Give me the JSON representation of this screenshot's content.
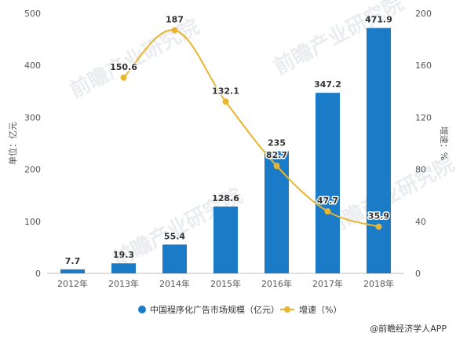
{
  "chart_data": {
    "type": "bar+line",
    "categories": [
      "2012年",
      "2013年",
      "2014年",
      "2015年",
      "2016年",
      "2017年",
      "2018年"
    ],
    "series": [
      {
        "name": "中国程序化广告市场规模（亿元）",
        "type": "bar",
        "axis": "left",
        "color": "#1b7bc6",
        "values": [
          7.7,
          19.3,
          55.4,
          128.6,
          235,
          347.2,
          471.9
        ],
        "labels": [
          "7.7",
          "19.3",
          "55.4",
          "128.6",
          "235",
          "347.2",
          "471.9"
        ]
      },
      {
        "name": "增速（%）",
        "type": "line",
        "axis": "right",
        "color": "#e8b530",
        "values": [
          null,
          150.6,
          187,
          132.1,
          82.7,
          47.7,
          35.9
        ],
        "labels": [
          null,
          "150.6",
          "187",
          "132.1",
          "82.7",
          "47.7",
          "35.9"
        ]
      }
    ],
    "ylabel": "单位：亿元",
    "y2label": "增速：%",
    "ylim": [
      0,
      500
    ],
    "yticks": [
      "0",
      "100",
      "200",
      "300",
      "400",
      "500"
    ],
    "y2lim": [
      0,
      200
    ],
    "y2ticks": [
      "0",
      "40",
      "80",
      "120",
      "160",
      "200"
    ],
    "legend_position": "bottom",
    "grid": false
  },
  "source": "@前瞻经济学人APP",
  "watermark": "前瞻产业研究院"
}
